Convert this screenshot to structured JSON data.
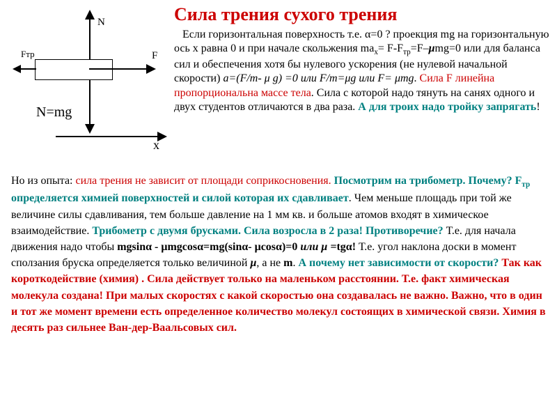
{
  "title": "Сила трения сухого трения",
  "diagram": {
    "N": "N",
    "F": "F",
    "Ftr": "Fтр",
    "Nmg": "N=mg",
    "x": "x"
  },
  "p1": {
    "t1": "Если горизонтальная поверхность т.е. α=0 ? проекция mg на горизонтальную ось х равна 0 и при начале скольжения ma",
    "t1b": "x",
    "t1c": "= F-F",
    "t1d": "тр",
    "t1e": "=F–",
    "t1mu": "μ",
    "t1f": "mg=0 или для баланса сил и обеспечения хотя бы нулевого ускорения (не нулевой начальной скорости)  ",
    "t1g": "a=(F/m- μ g) =0 или F/m=μg  или F= μmg",
    "t1h": ". ",
    "t1i": "Сила F линейна пропорциональна массе тела",
    "t1j": ". Сила с  которой надо тянуть на санях одного  и двух студентов отличаются в два раза.  ",
    "t1k": "А для троих надо тройку запрягать",
    "t1l": "!"
  },
  "p2": {
    "a": "Но из опыта: ",
    "b": "сила трения не зависит от площади соприкосновения.  ",
    "c": "Посмотрим на трибометр. Почему?  F",
    "c2": "тр",
    "c3": " определяется химией  поверхностей и силой которая их сдавливает",
    "d": ". Чем меньше площадь при той же величине силы сдавливания, тем больше давление на 1 мм кв. и больше  атомов входят в химическое взаимодействие. ",
    "e": "Трибометр с двумя брусками. Сила возросла в 2 раза! Противоречие?",
    "f": " Т.е. для начала движения надо чтобы ",
    "g": "mgsinα - μmgcosα=mg(sinα- μcosα)=0 ",
    "g2": "или μ =",
    "g3": "tgα",
    "g4": "! ",
    "h": "Т.е. угол наклона доски в момент сползания бруска определяется только величиной  ",
    "h2": "μ",
    "h3": ",  а не ",
    "h4": "m",
    "h5": ". ",
    "i": "А почему нет зависимости от скорости? ",
    "j": "Так как короткодействие (химия) . Сила действует только на маленьком расстоянии. Т.е. факт  химическая молекула создана! При малых скоростях с какой скоростью она создавалась не важно. Важно, что в один и тот же момент времени есть определенное количество молекул состоящих в химической связи. Химия в десять раз сильнее Ван-дер-Ваальсовых сил."
  }
}
